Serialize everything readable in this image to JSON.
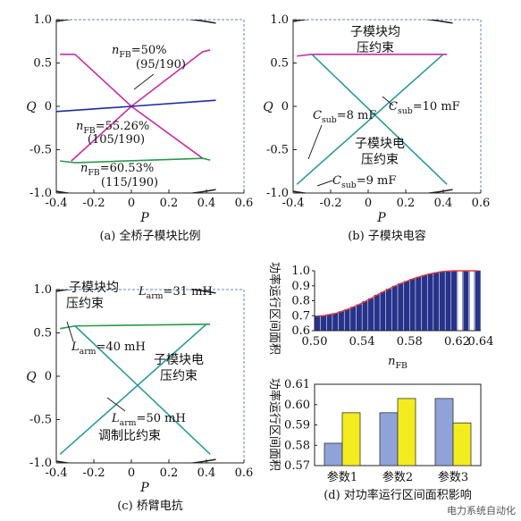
{
  "chart_data": [
    {
      "id": "a",
      "type": "line",
      "caption": "(a) 全桥子模块比例",
      "xlabel": "P",
      "ylabel": "Q",
      "xlim": [
        -0.4,
        0.6
      ],
      "ylim": [
        -1.0,
        1.0
      ],
      "xticks": [
        "-0.4",
        "-0.2",
        "0",
        "0.2",
        "0.4",
        "0.6"
      ],
      "yticks": [
        "1.0",
        "0.5",
        "0",
        "-0.5",
        "-1.0"
      ],
      "annotations": [
        {
          "text": "nFB=50%",
          "sub": "(95/190)"
        },
        {
          "text": "nFB=55.26%",
          "sub": "(105/190)"
        },
        {
          "text": "nFB=60.53%",
          "sub": "(115/190)"
        }
      ],
      "series": [
        {
          "name": "nFB=50%",
          "color": "#cc2aa8",
          "points": [
            [
              -0.38,
              0.6
            ],
            [
              -0.3,
              0.6
            ],
            [
              0,
              0
            ],
            [
              0.38,
              0.63
            ],
            [
              0.42,
              0.65
            ]
          ]
        },
        {
          "name": "nFB=50% lower",
          "color": "#cc2aa8",
          "points": [
            [
              -0.32,
              -0.63
            ],
            [
              0,
              0
            ],
            [
              0.38,
              -0.6
            ]
          ]
        },
        {
          "name": "nFB=55.26%",
          "color": "#1a2f9a",
          "points": [
            [
              -0.4,
              -0.06
            ],
            [
              0,
              0
            ],
            [
              0.45,
              0.07
            ]
          ]
        },
        {
          "name": "nFB=60.53%",
          "color": "#2a9a4a",
          "points": [
            [
              -0.38,
              -0.63
            ],
            [
              -0.3,
              -0.65
            ],
            [
              0.38,
              -0.6
            ],
            [
              0.42,
              -0.62
            ]
          ]
        },
        {
          "name": "boundary-top",
          "color": "#222222",
          "points": [
            [
              -0.4,
              0.98
            ],
            [
              0,
              1.07
            ],
            [
              0.45,
              0.96
            ]
          ]
        },
        {
          "name": "boundary-bottom",
          "color": "#222222",
          "points": [
            [
              -0.4,
              -0.98
            ],
            [
              0,
              -1.07
            ],
            [
              0.45,
              -0.96
            ]
          ]
        }
      ]
    },
    {
      "id": "b",
      "type": "line",
      "caption": "(b) 子模块电容",
      "xlabel": "P",
      "ylabel": "Q",
      "xlim": [
        -0.4,
        0.6
      ],
      "ylim": [
        -1.0,
        1.0
      ],
      "xticks": [
        "-0.4",
        "-0.2",
        "0",
        "0.2",
        "0.4",
        "0.6"
      ],
      "yticks": [
        "1.0",
        "0.5",
        "0",
        "-0.5",
        "-1.0"
      ],
      "annotations": [
        {
          "text": "子模块均",
          "sub": "压约束"
        },
        {
          "text": "Csub=10 mF",
          "sub": ""
        },
        {
          "text": "Csub=8 mF",
          "sub": ""
        },
        {
          "text": "子模块电",
          "sub": "压约束"
        },
        {
          "text": "Csub=9 mF",
          "sub": ""
        }
      ],
      "series": [
        {
          "name": "upper",
          "color": "#cc2aa8",
          "points": [
            [
              -0.38,
              0.58
            ],
            [
              -0.3,
              0.6
            ],
            [
              0.42,
              0.6
            ]
          ]
        },
        {
          "name": "diag1",
          "color": "#2a9a9a",
          "points": [
            [
              -0.3,
              0.6
            ],
            [
              0.42,
              -0.9
            ]
          ]
        },
        {
          "name": "diag2",
          "color": "#2a9a9a",
          "points": [
            [
              -0.38,
              -0.9
            ],
            [
              0.4,
              0.6
            ]
          ]
        },
        {
          "name": "boundary-top",
          "color": "#222222",
          "points": [
            [
              -0.4,
              0.98
            ],
            [
              0,
              1.07
            ],
            [
              0.45,
              0.96
            ]
          ]
        },
        {
          "name": "boundary-bottom",
          "color": "#222222",
          "points": [
            [
              -0.4,
              -0.98
            ],
            [
              0,
              -1.07
            ],
            [
              0.45,
              -0.96
            ]
          ]
        }
      ]
    },
    {
      "id": "c",
      "type": "line",
      "caption": "(c) 桥臂电抗",
      "xlabel": "P",
      "ylabel": "Q",
      "xlim": [
        -0.4,
        0.6
      ],
      "ylim": [
        -1.0,
        1.0
      ],
      "xticks": [
        "-0.4",
        "-0.2",
        "0",
        "0.2",
        "0.4",
        "0.6"
      ],
      "yticks": [
        "1.0",
        "0.5",
        "0",
        "-0.5",
        "-1.0"
      ],
      "annotations": [
        {
          "text": "子模块均",
          "sub": "压约束"
        },
        {
          "text": "Larm=31 mH",
          "sub": ""
        },
        {
          "text": "Larm=40 mH",
          "sub": ""
        },
        {
          "text": "子模块电",
          "sub": "压约束"
        },
        {
          "text": "Larm=50 mH",
          "sub": ""
        },
        {
          "text": "调制比约束",
          "sub": ""
        }
      ],
      "series": [
        {
          "name": "upper",
          "color": "#2a9a4a",
          "points": [
            [
              -0.38,
              0.55
            ],
            [
              -0.3,
              0.58
            ],
            [
              0.42,
              0.6
            ]
          ]
        },
        {
          "name": "diag1",
          "color": "#2a9a9a",
          "points": [
            [
              -0.3,
              0.58
            ],
            [
              0.42,
              -0.9
            ]
          ]
        },
        {
          "name": "diag2",
          "color": "#2a9a9a",
          "points": [
            [
              -0.38,
              -0.9
            ],
            [
              0.4,
              0.6
            ]
          ]
        },
        {
          "name": "boundary-top",
          "color": "#222222",
          "points": [
            [
              -0.4,
              0.98
            ],
            [
              0,
              1.07
            ],
            [
              0.45,
              0.96
            ]
          ]
        },
        {
          "name": "boundary-bottom",
          "color": "#222222",
          "points": [
            [
              -0.4,
              -0.98
            ],
            [
              0,
              -1.07
            ],
            [
              0.45,
              -0.96
            ]
          ]
        }
      ]
    },
    {
      "id": "d1",
      "type": "bar",
      "ylabel": "功率运行区间面积",
      "xlabel": "nFB",
      "xlim": [
        0.5,
        0.64
      ],
      "ylim": [
        0.6,
        1.0
      ],
      "xticks": [
        "0.50",
        "0.54",
        "0.58",
        "0.62",
        "0.64"
      ],
      "yticks": [
        "1.0",
        "0.9",
        "0.8",
        "0.7",
        "0.6"
      ],
      "bar_color": "#27338a",
      "curve_color": "#e83a3a",
      "x": [
        0.5025,
        0.5075,
        0.5125,
        0.5175,
        0.5225,
        0.5275,
        0.5325,
        0.5375,
        0.5425,
        0.5475,
        0.5525,
        0.5575,
        0.5625,
        0.5675,
        0.5725,
        0.5775,
        0.5825,
        0.5875,
        0.5925,
        0.5975,
        0.6025,
        0.6075,
        0.6125,
        0.6175,
        0.6225,
        0.6275,
        0.6325,
        0.6375
      ],
      "values": [
        0.698,
        0.7,
        0.708,
        0.715,
        0.728,
        0.742,
        0.758,
        0.775,
        0.795,
        0.815,
        0.838,
        0.858,
        0.878,
        0.898,
        0.915,
        0.93,
        0.945,
        0.958,
        0.97,
        0.98,
        0.988,
        0.995,
        0.998,
        1.0,
        1.0,
        1.0,
        1.0,
        1.0
      ]
    },
    {
      "id": "d2",
      "type": "bar",
      "caption": "(d) 对功率运行区间面积影响",
      "ylabel": "功率运行区间面积",
      "ylim": [
        0.57,
        0.61
      ],
      "yticks": [
        "0.61",
        "0.60",
        "0.59",
        "0.58",
        "0.57"
      ],
      "categories": [
        "参数1",
        "参数2",
        "参数3"
      ],
      "series": [
        {
          "color": "#8fa3d8",
          "values": [
            0.581,
            0.596,
            0.603
          ]
        },
        {
          "color": "#f3ec1f",
          "values": [
            0.596,
            0.603,
            0.591
          ]
        }
      ]
    }
  ],
  "watermark": "电力系统自动化"
}
